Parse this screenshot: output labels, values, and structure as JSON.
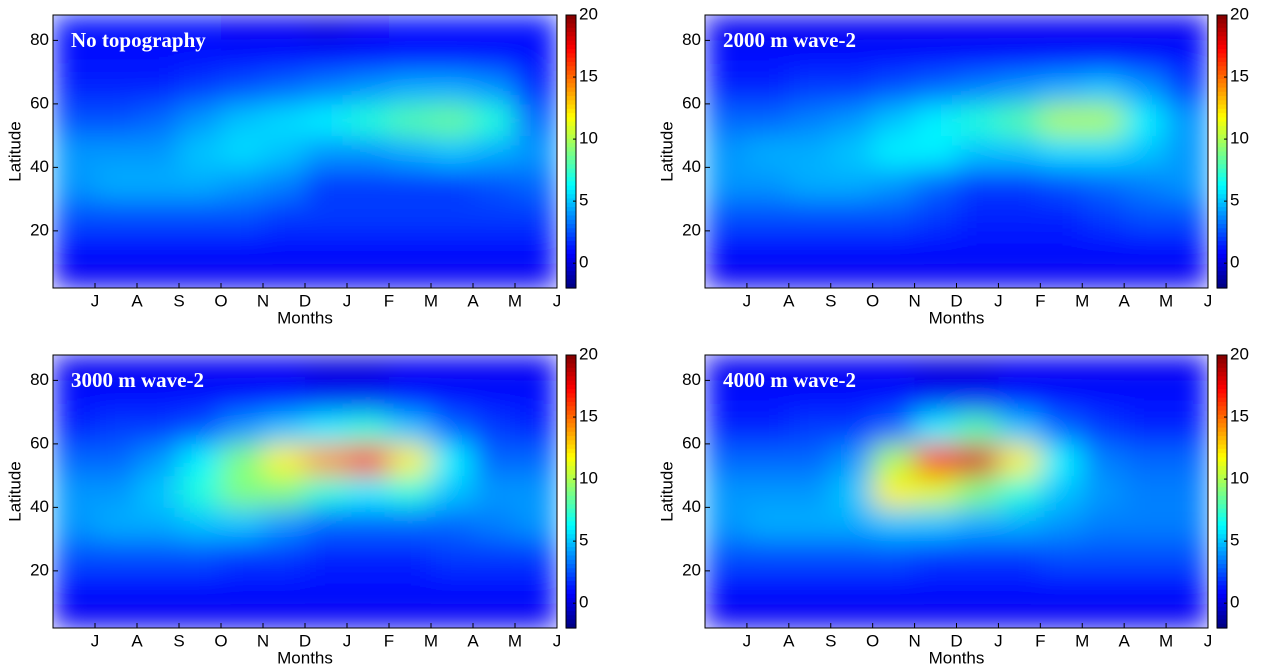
{
  "chart_data": [
    {
      "type": "heatmap",
      "title": "No topography",
      "xlabel": "Months",
      "ylabel": "Latitude",
      "colormap": "jet",
      "xlim": [
        0,
        12
      ],
      "ylim": [
        2,
        88
      ],
      "clim": [
        -2,
        20
      ],
      "xticks": [
        {
          "value": 1,
          "label": "J"
        },
        {
          "value": 2,
          "label": "A"
        },
        {
          "value": 3,
          "label": "S"
        },
        {
          "value": 4,
          "label": "O"
        },
        {
          "value": 5,
          "label": "N"
        },
        {
          "value": 6,
          "label": "D"
        },
        {
          "value": 7,
          "label": "J"
        },
        {
          "value": 8,
          "label": "F"
        },
        {
          "value": 9,
          "label": "M"
        },
        {
          "value": 10,
          "label": "A"
        },
        {
          "value": 11,
          "label": "M"
        },
        {
          "value": 12,
          "label": "J"
        }
      ],
      "yticks": [
        20,
        40,
        60,
        80
      ],
      "cticks": [
        0,
        5,
        10,
        15,
        20
      ],
      "x": [
        0.5,
        1.5,
        2.5,
        3.5,
        4.5,
        5.5,
        6.5,
        7.5,
        8.5,
        9.5,
        10.5,
        11.5
      ],
      "y": [
        5,
        15,
        25,
        35,
        45,
        55,
        65,
        75,
        85
      ],
      "z": [
        [
          0.5,
          0.5,
          0.5,
          0.5,
          0.5,
          0.5,
          0.5,
          0.5,
          0.5,
          0.5,
          0.5,
          0.5
        ],
        [
          1,
          1,
          1,
          1,
          1,
          1,
          1,
          1,
          1,
          1,
          1,
          1
        ],
        [
          2.5,
          2.5,
          2.5,
          2.5,
          2.5,
          2,
          2,
          2,
          2,
          2,
          2,
          2
        ],
        [
          4,
          4.5,
          4.5,
          4.5,
          4,
          3.5,
          2,
          2,
          2,
          2,
          2.5,
          3
        ],
        [
          4,
          4,
          4,
          5,
          5.5,
          5,
          4,
          4,
          4.5,
          5,
          4.5,
          4
        ],
        [
          2.5,
          2.5,
          3,
          4,
          5,
          5.5,
          6,
          7,
          8,
          8.5,
          7,
          3
        ],
        [
          1.5,
          1.5,
          1.5,
          2,
          2.5,
          3,
          3.5,
          4,
          4.5,
          4.5,
          4,
          1.5
        ],
        [
          1,
          1,
          1,
          1,
          1,
          1,
          1,
          1,
          1,
          1,
          1,
          1
        ],
        [
          1,
          1,
          1,
          1,
          0.5,
          0.5,
          0,
          0.5,
          1,
          1,
          1,
          1
        ]
      ]
    },
    {
      "type": "heatmap",
      "title": "2000 m wave-2",
      "xlabel": "Months",
      "ylabel": "Latitude",
      "colormap": "jet",
      "xlim": [
        0,
        12
      ],
      "ylim": [
        2,
        88
      ],
      "clim": [
        -2,
        20
      ],
      "xticks": [
        {
          "value": 1,
          "label": "J"
        },
        {
          "value": 2,
          "label": "A"
        },
        {
          "value": 3,
          "label": "S"
        },
        {
          "value": 4,
          "label": "O"
        },
        {
          "value": 5,
          "label": "N"
        },
        {
          "value": 6,
          "label": "D"
        },
        {
          "value": 7,
          "label": "J"
        },
        {
          "value": 8,
          "label": "F"
        },
        {
          "value": 9,
          "label": "M"
        },
        {
          "value": 10,
          "label": "A"
        },
        {
          "value": 11,
          "label": "M"
        },
        {
          "value": 12,
          "label": "J"
        }
      ],
      "yticks": [
        20,
        40,
        60,
        80
      ],
      "cticks": [
        0,
        5,
        10,
        15,
        20
      ],
      "x": [
        0.5,
        1.5,
        2.5,
        3.5,
        4.5,
        5.5,
        6.5,
        7.5,
        8.5,
        9.5,
        10.5,
        11.5
      ],
      "y": [
        5,
        15,
        25,
        35,
        45,
        55,
        65,
        75,
        85
      ],
      "z": [
        [
          0.5,
          0.5,
          0.5,
          0.5,
          0.5,
          0.5,
          0.5,
          0.5,
          0.5,
          0.5,
          0.5,
          0.5
        ],
        [
          1,
          1,
          1,
          1,
          1,
          1,
          1,
          1,
          1,
          1,
          1,
          1
        ],
        [
          2.5,
          2.5,
          2.5,
          2.5,
          2.5,
          2,
          1.5,
          1.5,
          1.5,
          2,
          2.5,
          2.5
        ],
        [
          4,
          4,
          4.5,
          4.5,
          4,
          3,
          2,
          2,
          2.5,
          3,
          3.5,
          4
        ],
        [
          4,
          4.5,
          4.5,
          5,
          6,
          6,
          5,
          5,
          5.5,
          5.5,
          5,
          4
        ],
        [
          3,
          3,
          3.5,
          4,
          5,
          6,
          7,
          8,
          10,
          10,
          6,
          4
        ],
        [
          1.5,
          1.5,
          2,
          2,
          2.5,
          3,
          3.5,
          4,
          4.5,
          5,
          4,
          2
        ],
        [
          1,
          1,
          1,
          1,
          1,
          1,
          1,
          1,
          1,
          1,
          1,
          1
        ],
        [
          0.5,
          0.5,
          0.5,
          0.5,
          0.5,
          0.5,
          0.5,
          0.5,
          0.5,
          0.5,
          0.5,
          0.5
        ]
      ]
    },
    {
      "type": "heatmap",
      "title": "3000 m wave-2",
      "xlabel": "Months",
      "ylabel": "Latitude",
      "colormap": "jet",
      "xlim": [
        0,
        12
      ],
      "ylim": [
        2,
        88
      ],
      "clim": [
        -2,
        20
      ],
      "xticks": [
        {
          "value": 1,
          "label": "J"
        },
        {
          "value": 2,
          "label": "A"
        },
        {
          "value": 3,
          "label": "S"
        },
        {
          "value": 4,
          "label": "O"
        },
        {
          "value": 5,
          "label": "N"
        },
        {
          "value": 6,
          "label": "D"
        },
        {
          "value": 7,
          "label": "J"
        },
        {
          "value": 8,
          "label": "F"
        },
        {
          "value": 9,
          "label": "M"
        },
        {
          "value": 10,
          "label": "A"
        },
        {
          "value": 11,
          "label": "M"
        },
        {
          "value": 12,
          "label": "J"
        }
      ],
      "yticks": [
        20,
        40,
        60,
        80
      ],
      "cticks": [
        0,
        5,
        10,
        15,
        20
      ],
      "x": [
        0.5,
        1.5,
        2.5,
        3.5,
        4.5,
        5.5,
        6.5,
        7.5,
        8.5,
        9.5,
        10.5,
        11.5
      ],
      "y": [
        5,
        15,
        25,
        35,
        45,
        55,
        65,
        75,
        85
      ],
      "z": [
        [
          0.5,
          0.5,
          0.5,
          0.5,
          0.5,
          0.5,
          0.5,
          0.5,
          0.5,
          0.5,
          0.5,
          0.5
        ],
        [
          1,
          1,
          1,
          1,
          1,
          1,
          1,
          1,
          1,
          1,
          1,
          1
        ],
        [
          2.5,
          2.5,
          2.5,
          2.5,
          2,
          2,
          1.5,
          1.5,
          1.5,
          2,
          2,
          2
        ],
        [
          4,
          4.5,
          4.5,
          5,
          5,
          4,
          3,
          3,
          3,
          3,
          3.5,
          4
        ],
        [
          4,
          4,
          5,
          7,
          9,
          9,
          7,
          6,
          7,
          5,
          4,
          4
        ],
        [
          3,
          3,
          4,
          6,
          9,
          12,
          14,
          16,
          12,
          6,
          3,
          3
        ],
        [
          1.5,
          2,
          2,
          2.5,
          4,
          5,
          6,
          7,
          5,
          3,
          2,
          1.5
        ],
        [
          1,
          1,
          1,
          1,
          1,
          1,
          0.5,
          0.5,
          1,
          1,
          1,
          1
        ],
        [
          0.5,
          0.5,
          0.5,
          0.5,
          0.5,
          0.5,
          0,
          0,
          0.5,
          0.5,
          0.5,
          0.5
        ]
      ]
    },
    {
      "type": "heatmap",
      "title": "4000 m wave-2",
      "xlabel": "Months",
      "ylabel": "Latitude",
      "colormap": "jet",
      "xlim": [
        0,
        12
      ],
      "ylim": [
        2,
        88
      ],
      "clim": [
        -2,
        20
      ],
      "xticks": [
        {
          "value": 1,
          "label": "J"
        },
        {
          "value": 2,
          "label": "A"
        },
        {
          "value": 3,
          "label": "S"
        },
        {
          "value": 4,
          "label": "O"
        },
        {
          "value": 5,
          "label": "N"
        },
        {
          "value": 6,
          "label": "D"
        },
        {
          "value": 7,
          "label": "J"
        },
        {
          "value": 8,
          "label": "F"
        },
        {
          "value": 9,
          "label": "M"
        },
        {
          "value": 10,
          "label": "A"
        },
        {
          "value": 11,
          "label": "M"
        },
        {
          "value": 12,
          "label": "J"
        }
      ],
      "yticks": [
        20,
        40,
        60,
        80
      ],
      "cticks": [
        0,
        5,
        10,
        15,
        20
      ],
      "x": [
        0.5,
        1.5,
        2.5,
        3.5,
        4.5,
        5.5,
        6.5,
        7.5,
        8.5,
        9.5,
        10.5,
        11.5
      ],
      "y": [
        5,
        15,
        25,
        35,
        45,
        55,
        65,
        75,
        85
      ],
      "z": [
        [
          0.5,
          0.5,
          0.5,
          0.5,
          0.5,
          0.5,
          0.5,
          0.5,
          0.5,
          0.5,
          0.5,
          0.5
        ],
        [
          1,
          1,
          1,
          1,
          1,
          1,
          1,
          1,
          1,
          1,
          1,
          1
        ],
        [
          2.5,
          2.5,
          2.5,
          2.5,
          2.5,
          2,
          2,
          2,
          2.5,
          2.5,
          2.5,
          2.5
        ],
        [
          4,
          4.5,
          4.5,
          4.5,
          5,
          5,
          4.5,
          4.5,
          4,
          3.5,
          3.5,
          3.5
        ],
        [
          4,
          4,
          4,
          5,
          12,
          11,
          9,
          7,
          5,
          4,
          3.5,
          3.5
        ],
        [
          3,
          3,
          3,
          4,
          10,
          17,
          18,
          12,
          6,
          3.5,
          3,
          3
        ],
        [
          1.5,
          1.5,
          2,
          2,
          3,
          6,
          8,
          5,
          3,
          2,
          1.5,
          1.5
        ],
        [
          1,
          1,
          1,
          1,
          1,
          0.5,
          0.5,
          1,
          1,
          1,
          1,
          1
        ],
        [
          0.5,
          0.5,
          0.5,
          0.5,
          0.5,
          0,
          0,
          0.5,
          0.5,
          0.5,
          0.5,
          0.5
        ]
      ]
    }
  ]
}
